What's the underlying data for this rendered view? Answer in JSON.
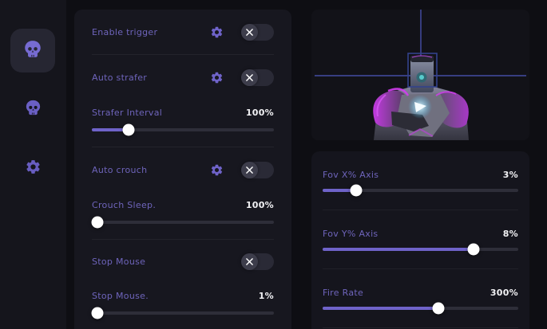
{
  "theme": {
    "accent": "#6f63c9",
    "label_color": "#6e64bb",
    "value_color": "#f2f2f5",
    "magenta": "#c93be4",
    "crosshair_color": "#4e58c0",
    "glow_color": "#8ee4ff"
  },
  "sidebar": {
    "items": [
      {
        "icon": "skull-icon",
        "active": true
      },
      {
        "icon": "skull-icon",
        "active": false
      },
      {
        "icon": "gear-icon",
        "active": false
      }
    ]
  },
  "middle_panel": {
    "groups": [
      {
        "toggle": {
          "label": "Enable trigger",
          "state": "off",
          "state_icon": "x-icon",
          "has_gear": true
        }
      },
      {
        "toggle": {
          "label": "Auto strafer",
          "state": "off",
          "state_icon": "x-icon",
          "has_gear": true
        },
        "slider": {
          "label": "Strafer Interval",
          "value": "100%",
          "thumb_percent": 20
        }
      },
      {
        "toggle": {
          "label": "Auto crouch",
          "state": "off",
          "state_icon": "x-icon",
          "has_gear": true
        },
        "slider": {
          "label": "Crouch Sleep.",
          "value": "100%",
          "thumb_percent": 3
        }
      },
      {
        "toggle": {
          "label": "Stop Mouse",
          "state": "off",
          "state_icon": "x-icon",
          "has_gear": false
        },
        "slider": {
          "label": "Stop Mouse.",
          "value": "1%",
          "thumb_percent": 3
        }
      }
    ]
  },
  "right_panel": {
    "preview": {
      "content": "robot-character-aim-preview",
      "overlay": "crosshair-and-head-target-box"
    },
    "sliders": [
      {
        "label": "Fov X% Axis",
        "value": "3%",
        "thumb_percent": 17
      },
      {
        "label": "Fov Y% Axis",
        "value": "8%",
        "thumb_percent": 77
      },
      {
        "label": "Fire Rate",
        "value": "300%",
        "thumb_percent": 59
      }
    ]
  }
}
